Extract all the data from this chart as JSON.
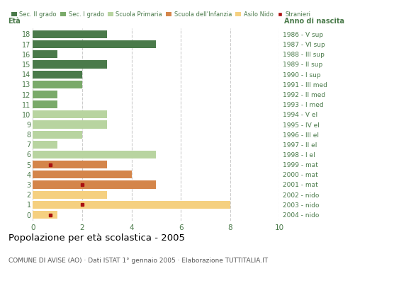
{
  "ages": [
    18,
    17,
    16,
    15,
    14,
    13,
    12,
    11,
    10,
    9,
    8,
    7,
    6,
    5,
    4,
    3,
    2,
    1,
    0
  ],
  "year_labels": [
    "1986 - V sup",
    "1987 - VI sup",
    "1988 - III sup",
    "1989 - II sup",
    "1990 - I sup",
    "1991 - III med",
    "1992 - II med",
    "1993 - I med",
    "1994 - V el",
    "1995 - IV el",
    "1996 - III el",
    "1997 - II el",
    "1998 - I el",
    "1999 - mat",
    "2000 - mat",
    "2001 - mat",
    "2002 - nido",
    "2003 - nido",
    "2004 - nido"
  ],
  "bar_values": [
    3,
    5,
    1,
    3,
    2,
    2,
    1,
    1,
    3,
    3,
    2,
    1,
    5,
    3,
    4,
    5,
    3,
    8,
    1
  ],
  "bar_colors": [
    "#4a7a4a",
    "#4a7a4a",
    "#4a7a4a",
    "#4a7a4a",
    "#4a7a4a",
    "#7aaa6a",
    "#7aaa6a",
    "#7aaa6a",
    "#b8d4a0",
    "#b8d4a0",
    "#b8d4a0",
    "#b8d4a0",
    "#b8d4a0",
    "#d4854a",
    "#d4854a",
    "#d4854a",
    "#f5d080",
    "#f5d080",
    "#f5d080"
  ],
  "stranieri_marker": [
    {
      "age": 5,
      "value": 0.7
    },
    {
      "age": 3,
      "value": 2.0
    },
    {
      "age": 1,
      "value": 2.0
    },
    {
      "age": 0,
      "value": 0.7
    }
  ],
  "legend_labels": [
    "Sec. II grado",
    "Sec. I grado",
    "Scuola Primaria",
    "Scuola dell'Infanzia",
    "Asilo Nido",
    "Stranieri"
  ],
  "legend_colors": [
    "#4a7a4a",
    "#7aaa6a",
    "#b8d4a0",
    "#d4854a",
    "#f5d080",
    "#aa1111"
  ],
  "title": "Popolazione per età scolastica - 2005",
  "subtitle": "COMUNE DI AVISE (AO) · Dati ISTAT 1° gennaio 2005 · Elaborazione TUTTITALIA.IT",
  "xlabel_eta": "Età",
  "xlabel_anno": "Anno di nascita",
  "xlim": [
    0,
    10
  ],
  "xticks": [
    0,
    2,
    4,
    6,
    8,
    10
  ],
  "background_color": "#ffffff",
  "grid_color": "#cccccc",
  "text_color": "#4a7a4a",
  "title_color": "#000000",
  "subtitle_color": "#555555"
}
